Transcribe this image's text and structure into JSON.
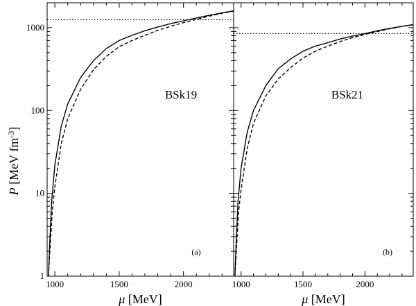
{
  "chart_data": [
    {
      "type": "line",
      "panel_tag": "(a)",
      "model_label": "BSk19",
      "xlabel": "μ [MeV]",
      "ylabel": "P [MeV fm-3]",
      "xlim": [
        940,
        2390
      ],
      "ylim": [
        1,
        2000
      ],
      "yscale": "log",
      "xticks": [
        1000,
        1500,
        2000
      ],
      "yticks": [
        1,
        10,
        100,
        1000
      ],
      "ytick_labels": [
        "1",
        "10",
        "100",
        "1000"
      ],
      "hline": 1250,
      "series": [
        {
          "style": "solid",
          "points": [
            [
              950,
              1.0
            ],
            [
              960,
              2.5
            ],
            [
              975,
              8
            ],
            [
              1000,
              22
            ],
            [
              1050,
              65
            ],
            [
              1100,
              120
            ],
            [
              1200,
              250
            ],
            [
              1300,
              400
            ],
            [
              1400,
              560
            ],
            [
              1500,
              700
            ],
            [
              1600,
              810
            ],
            [
              1700,
              920
            ],
            [
              1800,
              1020
            ],
            [
              1900,
              1120
            ],
            [
              2000,
              1210
            ],
            [
              2100,
              1310
            ],
            [
              2200,
              1410
            ],
            [
              2300,
              1510
            ],
            [
              2390,
              1600
            ]
          ]
        },
        {
          "style": "dashed",
          "points": [
            [
              950,
              1.0
            ],
            [
              965,
              2.5
            ],
            [
              980,
              6
            ],
            [
              1000,
              12
            ],
            [
              1050,
              40
            ],
            [
              1100,
              80
            ],
            [
              1200,
              180
            ],
            [
              1300,
              310
            ],
            [
              1400,
              450
            ],
            [
              1500,
              590
            ],
            [
              1600,
              700
            ],
            [
              1700,
              810
            ],
            [
              1800,
              930
            ],
            [
              1900,
              1040
            ],
            [
              2000,
              1150
            ],
            [
              2100,
              1260
            ],
            [
              2200,
              1380
            ],
            [
              2300,
              1490
            ],
            [
              2390,
              1590
            ]
          ]
        }
      ]
    },
    {
      "type": "line",
      "panel_tag": "(b)",
      "model_label": "BSk21",
      "xlabel": "μ [MeV]",
      "ylabel": "",
      "xlim": [
        940,
        2390
      ],
      "ylim": [
        1,
        2000
      ],
      "yscale": "log",
      "xticks": [
        1000,
        1500,
        2000
      ],
      "yticks": [
        1,
        10,
        100,
        1000
      ],
      "ytick_labels": [],
      "hline": 850,
      "series": [
        {
          "style": "solid",
          "points": [
            [
              950,
              1.0
            ],
            [
              960,
              2.5
            ],
            [
              975,
              8
            ],
            [
              1000,
              20
            ],
            [
              1050,
              55
            ],
            [
              1100,
              100
            ],
            [
              1200,
              200
            ],
            [
              1300,
              320
            ],
            [
              1400,
              420
            ],
            [
              1500,
              520
            ],
            [
              1600,
              600
            ],
            [
              1700,
              660
            ],
            [
              1800,
              730
            ],
            [
              1900,
              790
            ],
            [
              2000,
              850
            ],
            [
              2100,
              920
            ],
            [
              2200,
              980
            ],
            [
              2300,
              1040
            ],
            [
              2390,
              1090
            ]
          ]
        },
        {
          "style": "dashed",
          "points": [
            [
              950,
              1.0
            ],
            [
              965,
              2.5
            ],
            [
              980,
              6
            ],
            [
              1000,
              11
            ],
            [
              1050,
              35
            ],
            [
              1100,
              70
            ],
            [
              1200,
              150
            ],
            [
              1300,
              240
            ],
            [
              1400,
              330
            ],
            [
              1500,
              430
            ],
            [
              1600,
              520
            ],
            [
              1700,
              600
            ],
            [
              1800,
              680
            ],
            [
              1900,
              760
            ],
            [
              2000,
              830
            ],
            [
              2100,
              900
            ],
            [
              2200,
              970
            ],
            [
              2300,
              1040
            ],
            [
              2390,
              1080
            ]
          ]
        }
      ]
    }
  ]
}
